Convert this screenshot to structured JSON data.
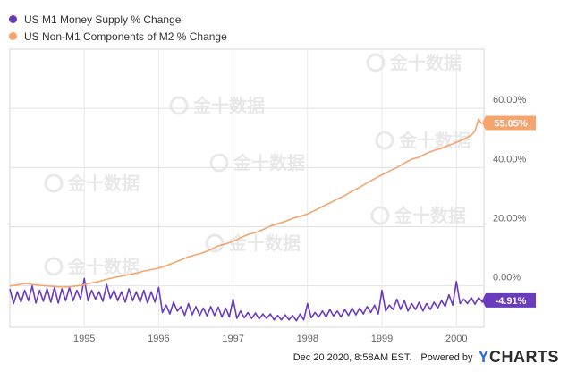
{
  "footer": {
    "timestamp": "Dec 20 2020, 8:58AM EST.",
    "powered_by": "Powered by",
    "brand_y": "Y",
    "brand_rest": "CHARTS"
  },
  "watermark": {
    "text": "金十数据"
  },
  "chart_data": {
    "type": "line",
    "title": "",
    "xlabel": "",
    "ylabel": "",
    "x_ticks": [
      "1995",
      "1996",
      "1997",
      "1998",
      "1999",
      "2000"
    ],
    "x_range": [
      1994.0,
      2000.37
    ],
    "y_ticks": [
      "0.00%",
      "20.00%",
      "40.00%",
      "60.00%"
    ],
    "y_tick_values": [
      0,
      20,
      40,
      60
    ],
    "ylim": [
      -14,
      80
    ],
    "grid": true,
    "legend_position": "top-left",
    "series": [
      {
        "name": "US M1 Money Supply % Change",
        "color": "#6b3bbd",
        "last_label": "-4.91%",
        "points": [
          [
            1994.0,
            -1.0
          ],
          [
            1994.05,
            -6.0
          ],
          [
            1994.1,
            -2.0
          ],
          [
            1994.15,
            -5.5
          ],
          [
            1994.2,
            -1.5
          ],
          [
            1994.25,
            -5.0
          ],
          [
            1994.3,
            0.0
          ],
          [
            1994.35,
            -5.8
          ],
          [
            1994.4,
            -1.5
          ],
          [
            1994.45,
            -5.2
          ],
          [
            1994.5,
            -1.0
          ],
          [
            1994.55,
            -5.5
          ],
          [
            1994.6,
            -0.5
          ],
          [
            1994.65,
            -5.8
          ],
          [
            1994.7,
            -1.0
          ],
          [
            1994.75,
            -5.0
          ],
          [
            1994.8,
            -0.5
          ],
          [
            1994.85,
            -5.0
          ],
          [
            1994.9,
            -1.5
          ],
          [
            1994.95,
            -4.5
          ],
          [
            1995.0,
            2.5
          ],
          [
            1995.05,
            -5.0
          ],
          [
            1995.1,
            -1.5
          ],
          [
            1995.15,
            -4.5
          ],
          [
            1995.2,
            -2.0
          ],
          [
            1995.25,
            -5.2
          ],
          [
            1995.3,
            0.5
          ],
          [
            1995.35,
            -4.2
          ],
          [
            1995.4,
            -1.5
          ],
          [
            1995.45,
            -5.0
          ],
          [
            1995.5,
            -2.0
          ],
          [
            1995.55,
            -5.5
          ],
          [
            1995.6,
            -1.0
          ],
          [
            1995.65,
            -5.0
          ],
          [
            1995.7,
            -2.0
          ],
          [
            1995.75,
            -5.5
          ],
          [
            1995.8,
            -1.5
          ],
          [
            1995.85,
            -5.8
          ],
          [
            1995.9,
            -2.0
          ],
          [
            1995.95,
            -5.5
          ],
          [
            1996.0,
            -0.5
          ],
          [
            1996.05,
            -9.0
          ],
          [
            1996.1,
            -6.5
          ],
          [
            1996.15,
            -9.5
          ],
          [
            1996.2,
            -5.5
          ],
          [
            1996.25,
            -8.5
          ],
          [
            1996.3,
            -7.0
          ],
          [
            1996.35,
            -10.0
          ],
          [
            1996.4,
            -6.0
          ],
          [
            1996.45,
            -9.8
          ],
          [
            1996.5,
            -7.0
          ],
          [
            1996.55,
            -10.0
          ],
          [
            1996.6,
            -7.5
          ],
          [
            1996.65,
            -10.2
          ],
          [
            1996.7,
            -7.0
          ],
          [
            1996.75,
            -10.0
          ],
          [
            1996.8,
            -7.2
          ],
          [
            1996.85,
            -10.5
          ],
          [
            1996.9,
            -7.5
          ],
          [
            1996.95,
            -10.5
          ],
          [
            1997.0,
            -4.5
          ],
          [
            1997.05,
            -11.0
          ],
          [
            1997.1,
            -8.5
          ],
          [
            1997.15,
            -10.8
          ],
          [
            1997.2,
            -9.0
          ],
          [
            1997.25,
            -11.0
          ],
          [
            1997.3,
            -9.2
          ],
          [
            1997.35,
            -11.2
          ],
          [
            1997.4,
            -9.5
          ],
          [
            1997.45,
            -11.0
          ],
          [
            1997.5,
            -9.5
          ],
          [
            1997.55,
            -11.5
          ],
          [
            1997.6,
            -10.0
          ],
          [
            1997.65,
            -11.5
          ],
          [
            1997.7,
            -9.8
          ],
          [
            1997.75,
            -11.5
          ],
          [
            1997.8,
            -10.0
          ],
          [
            1997.85,
            -11.8
          ],
          [
            1997.9,
            -9.5
          ],
          [
            1997.95,
            -11.5
          ],
          [
            1998.0,
            -6.0
          ],
          [
            1998.05,
            -10.8
          ],
          [
            1998.1,
            -9.0
          ],
          [
            1998.15,
            -10.5
          ],
          [
            1998.2,
            -8.5
          ],
          [
            1998.25,
            -10.5
          ],
          [
            1998.3,
            -8.0
          ],
          [
            1998.35,
            -10.2
          ],
          [
            1998.4,
            -8.5
          ],
          [
            1998.45,
            -10.5
          ],
          [
            1998.5,
            -8.0
          ],
          [
            1998.55,
            -10.0
          ],
          [
            1998.6,
            -7.5
          ],
          [
            1998.65,
            -9.8
          ],
          [
            1998.7,
            -7.5
          ],
          [
            1998.75,
            -9.5
          ],
          [
            1998.8,
            -7.0
          ],
          [
            1998.85,
            -9.0
          ],
          [
            1998.9,
            -6.5
          ],
          [
            1998.95,
            -9.5
          ],
          [
            1999.0,
            -1.5
          ],
          [
            1999.05,
            -8.5
          ],
          [
            1999.1,
            -6.5
          ],
          [
            1999.15,
            -8.0
          ],
          [
            1999.2,
            -4.5
          ],
          [
            1999.25,
            -8.0
          ],
          [
            1999.3,
            -5.0
          ],
          [
            1999.35,
            -8.5
          ],
          [
            1999.4,
            -6.0
          ],
          [
            1999.45,
            -8.0
          ],
          [
            1999.5,
            -5.5
          ],
          [
            1999.55,
            -8.5
          ],
          [
            1999.6,
            -6.0
          ],
          [
            1999.65,
            -8.0
          ],
          [
            1999.7,
            -5.5
          ],
          [
            1999.75,
            -7.5
          ],
          [
            1999.8,
            -5.0
          ],
          [
            1999.85,
            -7.0
          ],
          [
            1999.9,
            -3.0
          ],
          [
            1999.95,
            -6.5
          ],
          [
            2000.0,
            1.5
          ],
          [
            2000.05,
            -6.0
          ],
          [
            2000.1,
            -4.5
          ],
          [
            2000.15,
            -6.0
          ],
          [
            2000.2,
            -4.0
          ],
          [
            2000.25,
            -6.2
          ],
          [
            2000.3,
            -4.0
          ],
          [
            2000.35,
            -5.5
          ],
          [
            2000.37,
            -4.91
          ]
        ]
      },
      {
        "name": "US Non-M1 Components of M2 % Change",
        "color": "#f5a46d",
        "last_label": "55.05%",
        "points": [
          [
            1994.0,
            0.0
          ],
          [
            1994.1,
            0.3
          ],
          [
            1994.2,
            0.8
          ],
          [
            1994.3,
            0.5
          ],
          [
            1994.4,
            0.2
          ],
          [
            1994.5,
            0.0
          ],
          [
            1994.6,
            -0.2
          ],
          [
            1994.7,
            -0.4
          ],
          [
            1994.8,
            -0.3
          ],
          [
            1994.9,
            0.0
          ],
          [
            1995.0,
            0.4
          ],
          [
            1995.1,
            1.0
          ],
          [
            1995.2,
            1.5
          ],
          [
            1995.3,
            2.2
          ],
          [
            1995.4,
            2.8
          ],
          [
            1995.5,
            3.3
          ],
          [
            1995.6,
            3.8
          ],
          [
            1995.7,
            4.3
          ],
          [
            1995.8,
            5.0
          ],
          [
            1995.9,
            5.5
          ],
          [
            1996.0,
            6.0
          ],
          [
            1996.1,
            6.8
          ],
          [
            1996.2,
            7.8
          ],
          [
            1996.3,
            8.8
          ],
          [
            1996.4,
            9.8
          ],
          [
            1996.5,
            10.5
          ],
          [
            1996.6,
            11.2
          ],
          [
            1996.7,
            12.3
          ],
          [
            1996.8,
            13.5
          ],
          [
            1996.9,
            14.2
          ],
          [
            1997.0,
            15.0
          ],
          [
            1997.1,
            16.3
          ],
          [
            1997.2,
            17.3
          ],
          [
            1997.3,
            18.0
          ],
          [
            1997.4,
            19.0
          ],
          [
            1997.5,
            20.2
          ],
          [
            1997.6,
            21.0
          ],
          [
            1997.7,
            21.8
          ],
          [
            1997.8,
            22.8
          ],
          [
            1997.9,
            23.5
          ],
          [
            1998.0,
            24.3
          ],
          [
            1998.1,
            25.5
          ],
          [
            1998.2,
            26.8
          ],
          [
            1998.3,
            28.0
          ],
          [
            1998.4,
            29.3
          ],
          [
            1998.5,
            30.5
          ],
          [
            1998.6,
            32.0
          ],
          [
            1998.7,
            33.3
          ],
          [
            1998.8,
            34.8
          ],
          [
            1998.9,
            36.2
          ],
          [
            1999.0,
            37.5
          ],
          [
            1999.1,
            38.8
          ],
          [
            1999.2,
            40.0
          ],
          [
            1999.3,
            41.5
          ],
          [
            1999.4,
            42.8
          ],
          [
            1999.5,
            43.5
          ],
          [
            1999.6,
            44.8
          ],
          [
            1999.7,
            45.8
          ],
          [
            1999.8,
            46.5
          ],
          [
            1999.9,
            47.5
          ],
          [
            2000.0,
            48.5
          ],
          [
            2000.1,
            49.5
          ],
          [
            2000.2,
            51.0
          ],
          [
            2000.25,
            52.3
          ],
          [
            2000.3,
            56.5
          ],
          [
            2000.33,
            55.0
          ],
          [
            2000.37,
            55.05
          ]
        ]
      }
    ]
  }
}
